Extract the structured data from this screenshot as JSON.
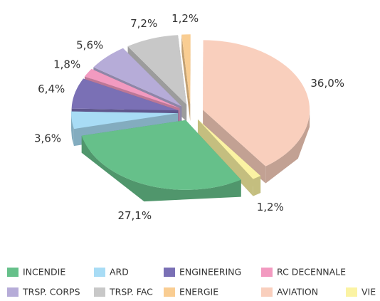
{
  "chart_data": {
    "type": "pie3d",
    "categories": [
      "INCENDIE",
      "ARD",
      "ENGINEERING",
      "RC DECENNALE",
      "TRSP. CORPS",
      "TRSP. FAC",
      "ENERGIE",
      "AVIATION",
      "VIE"
    ],
    "values": [
      27.1,
      3.6,
      6.4,
      1.8,
      5.6,
      7.2,
      1.2,
      36.0,
      1.2
    ],
    "value_labels": [
      "27,1%",
      "3,6%",
      "6,4%",
      "1,8%",
      "5,6%",
      "7,2%",
      "1,2%",
      "36,0%",
      "1,2%"
    ],
    "colors": [
      "#66c08a",
      "#a8dcf5",
      "#7a70b5",
      "#f29ac0",
      "#b6acd8",
      "#c8c8c8",
      "#f9cd92",
      "#f9cfbd",
      "#fbf3a3"
    ],
    "legend": "bottom"
  }
}
